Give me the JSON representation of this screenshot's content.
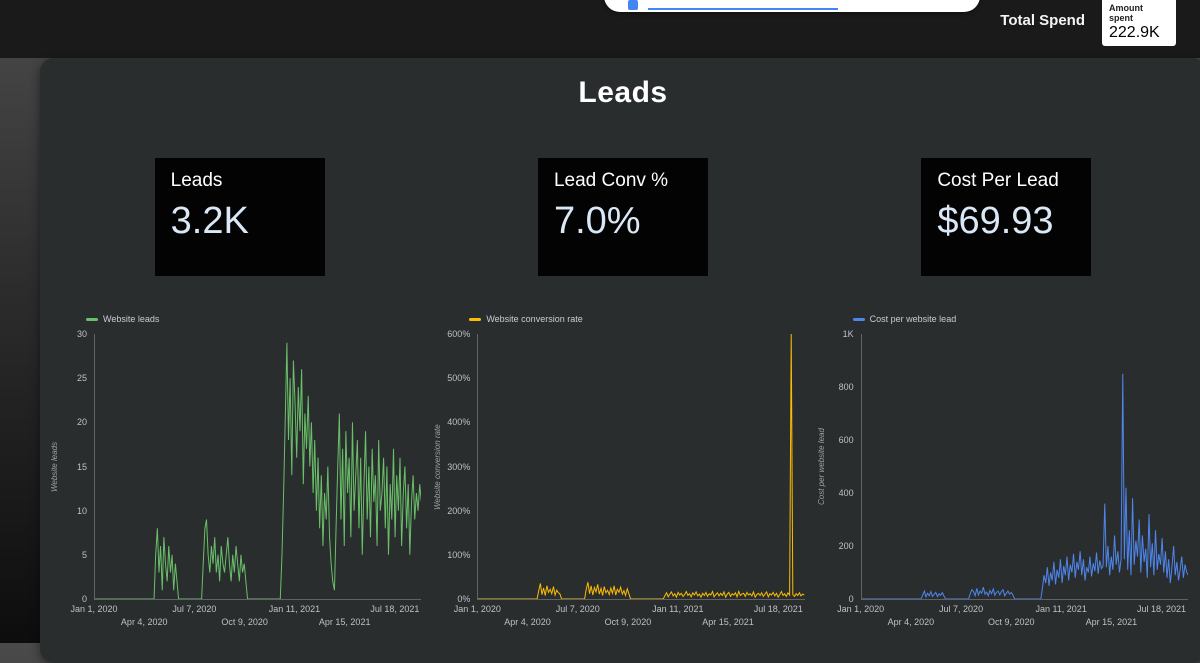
{
  "topbar": {
    "total_spend_label": "Total Spend",
    "scorecard": {
      "label": "Amount spent",
      "value": "222.9K"
    }
  },
  "panel": {
    "title": "Leads",
    "scorecards": [
      {
        "label": "Leads",
        "value": "3.2K"
      },
      {
        "label": "Lead Conv %",
        "value": "7.0%"
      },
      {
        "label": "Cost Per Lead",
        "value": "$69.93"
      }
    ]
  },
  "chart_data": [
    {
      "type": "line",
      "legend": "Website leads",
      "ylabel": "Website leads",
      "color": "#6abf69",
      "ylim": [
        0,
        30
      ],
      "ytick_labels": [
        "0",
        "5",
        "10",
        "15",
        "20",
        "25",
        "30"
      ],
      "xticks": [
        {
          "label": "Jan 1, 2020",
          "pos": 0.0,
          "row": 1
        },
        {
          "label": "Apr 4, 2020",
          "pos": 0.154,
          "row": 2
        },
        {
          "label": "Jul 7, 2020",
          "pos": 0.308,
          "row": 1
        },
        {
          "label": "Oct 9, 2020",
          "pos": 0.462,
          "row": 2
        },
        {
          "label": "Jan 11, 2021",
          "pos": 0.615,
          "row": 1
        },
        {
          "label": "Apr 15, 2021",
          "pos": 0.769,
          "row": 2
        },
        {
          "label": "Jul 18, 2021",
          "pos": 0.923,
          "row": 1
        }
      ],
      "values": [
        0,
        0,
        0,
        0,
        0,
        0,
        0,
        0,
        0,
        0,
        0,
        0,
        0,
        0,
        0,
        0,
        0,
        0,
        0,
        0,
        0,
        0,
        0,
        0,
        0,
        0,
        0,
        0,
        0,
        0,
        0,
        0,
        0,
        0,
        0,
        0,
        0,
        5,
        8,
        3,
        6,
        1,
        7,
        4,
        2,
        6,
        3,
        5,
        1,
        4,
        2,
        0,
        0,
        0,
        0,
        0,
        0,
        0,
        0,
        0,
        0,
        0,
        0,
        0,
        0,
        0,
        4,
        8,
        9,
        5,
        3,
        6,
        4,
        7,
        3,
        5,
        2,
        6,
        4,
        3,
        5,
        7,
        4,
        2,
        5,
        3,
        6,
        4,
        2,
        5,
        3,
        4,
        2,
        0,
        0,
        0,
        0,
        0,
        0,
        0,
        0,
        0,
        0,
        0,
        0,
        0,
        0,
        0,
        0,
        0,
        0,
        0,
        0,
        0,
        5,
        12,
        20,
        29,
        18,
        25,
        14,
        27,
        22,
        16,
        24,
        19,
        26,
        13,
        21,
        17,
        23,
        15,
        20,
        12,
        18,
        10,
        16,
        8,
        14,
        6,
        12,
        9,
        15,
        7,
        4,
        2,
        1,
        8,
        15,
        21,
        9,
        17,
        6,
        19,
        12,
        16,
        7,
        20,
        10,
        14,
        18,
        8,
        16,
        5,
        13,
        19,
        9,
        15,
        7,
        17,
        11,
        14,
        6,
        18,
        10,
        12,
        16,
        8,
        15,
        5,
        13,
        9,
        17,
        7,
        14,
        10,
        16,
        6,
        12,
        15,
        8,
        13,
        5,
        11,
        14,
        9,
        12,
        10,
        13,
        11
      ]
    },
    {
      "type": "line",
      "legend": "Website conversion rate",
      "ylabel": "Website conversion rate",
      "color": "#fbbc04",
      "ylim": [
        0,
        600
      ],
      "ytick_labels": [
        "0%",
        "100%",
        "200%",
        "300%",
        "400%",
        "500%",
        "600%"
      ],
      "xticks": [
        {
          "label": "Jan 1, 2020",
          "pos": 0.0,
          "row": 1
        },
        {
          "label": "Apr 4, 2020",
          "pos": 0.154,
          "row": 2
        },
        {
          "label": "Jul 7, 2020",
          "pos": 0.308,
          "row": 1
        },
        {
          "label": "Oct 9, 2020",
          "pos": 0.462,
          "row": 2
        },
        {
          "label": "Jan 11, 2021",
          "pos": 0.615,
          "row": 1
        },
        {
          "label": "Apr 15, 2021",
          "pos": 0.769,
          "row": 2
        },
        {
          "label": "Jul 18, 2021",
          "pos": 0.923,
          "row": 1
        }
      ],
      "values": [
        0,
        0,
        0,
        0,
        0,
        0,
        0,
        0,
        0,
        0,
        0,
        0,
        0,
        0,
        0,
        0,
        0,
        0,
        0,
        0,
        0,
        0,
        0,
        0,
        0,
        0,
        0,
        0,
        0,
        0,
        0,
        0,
        0,
        0,
        0,
        0,
        0,
        18,
        35,
        10,
        25,
        8,
        30,
        15,
        22,
        12,
        28,
        9,
        20,
        14,
        11,
        0,
        0,
        0,
        0,
        0,
        0,
        0,
        0,
        0,
        0,
        0,
        0,
        0,
        0,
        0,
        22,
        38,
        12,
        30,
        9,
        26,
        16,
        33,
        11,
        24,
        8,
        28,
        14,
        20,
        10,
        25,
        13,
        30,
        9,
        22,
        15,
        27,
        11,
        19,
        8,
        23,
        12,
        0,
        0,
        0,
        0,
        0,
        0,
        0,
        0,
        0,
        0,
        0,
        0,
        0,
        0,
        0,
        0,
        0,
        0,
        0,
        0,
        0,
        8,
        14,
        5,
        11,
        16,
        7,
        12,
        4,
        15,
        9,
        13,
        6,
        10,
        17,
        8,
        12,
        5,
        14,
        9,
        16,
        7,
        11,
        4,
        13,
        8,
        15,
        6,
        12,
        9,
        17,
        5,
        10,
        14,
        7,
        13,
        8,
        16,
        4,
        11,
        15,
        6,
        12,
        9,
        14,
        5,
        17,
        8,
        11,
        13,
        6,
        15,
        9,
        12,
        7,
        16,
        4,
        10,
        13,
        8,
        14,
        6,
        11,
        16,
        5,
        12,
        9,
        15,
        7,
        13,
        4,
        10,
        17,
        8,
        12,
        6,
        14,
        9,
        600,
        10,
        6,
        12,
        8,
        14,
        7,
        11,
        9
      ]
    },
    {
      "type": "line",
      "legend": "Cost per website lead",
      "ylabel": "Cost per website lead",
      "color": "#4e86ec",
      "ylim": [
        0,
        1000
      ],
      "ytick_labels": [
        "0",
        "200",
        "400",
        "600",
        "800",
        "1K"
      ],
      "xticks": [
        {
          "label": "Jan 1, 2020",
          "pos": 0.0,
          "row": 1
        },
        {
          "label": "Apr 4, 2020",
          "pos": 0.154,
          "row": 2
        },
        {
          "label": "Jul 7, 2020",
          "pos": 0.308,
          "row": 1
        },
        {
          "label": "Oct 9, 2020",
          "pos": 0.462,
          "row": 2
        },
        {
          "label": "Jan 11, 2021",
          "pos": 0.615,
          "row": 1
        },
        {
          "label": "Apr 15, 2021",
          "pos": 0.769,
          "row": 2
        },
        {
          "label": "Jul 18, 2021",
          "pos": 0.923,
          "row": 1
        }
      ],
      "values": [
        0,
        0,
        0,
        0,
        0,
        0,
        0,
        0,
        0,
        0,
        0,
        0,
        0,
        0,
        0,
        0,
        0,
        0,
        0,
        0,
        0,
        0,
        0,
        0,
        0,
        0,
        0,
        0,
        0,
        0,
        0,
        0,
        0,
        0,
        0,
        0,
        0,
        15,
        30,
        8,
        22,
        12,
        28,
        10,
        18,
        25,
        9,
        20,
        14,
        24,
        11,
        0,
        0,
        0,
        0,
        0,
        0,
        0,
        0,
        0,
        0,
        0,
        0,
        0,
        0,
        0,
        20,
        35,
        28,
        12,
        40,
        15,
        30,
        22,
        45,
        18,
        26,
        12,
        32,
        20,
        38,
        14,
        25,
        30,
        16,
        28,
        35,
        12,
        22,
        30,
        18,
        25,
        15,
        0,
        0,
        0,
        0,
        0,
        0,
        0,
        0,
        0,
        0,
        0,
        0,
        0,
        0,
        0,
        0,
        0,
        40,
        90,
        60,
        120,
        50,
        100,
        70,
        140,
        55,
        110,
        80,
        150,
        60,
        125,
        90,
        160,
        70,
        130,
        100,
        170,
        80,
        140,
        110,
        180,
        90,
        150,
        70,
        120,
        100,
        160,
        85,
        135,
        105,
        175,
        95,
        145,
        115,
        125,
        360,
        120,
        200,
        90,
        160,
        110,
        240,
        130,
        180,
        100,
        150,
        850,
        150,
        420,
        110,
        260,
        90,
        380,
        130,
        220,
        160,
        300,
        100,
        240,
        140,
        190,
        80,
        320,
        120,
        210,
        90,
        260,
        110,
        170,
        130,
        230,
        100,
        180,
        80,
        150,
        60,
        120,
        200,
        90,
        140,
        70,
        110,
        160,
        80,
        130,
        100,
        90
      ]
    }
  ]
}
